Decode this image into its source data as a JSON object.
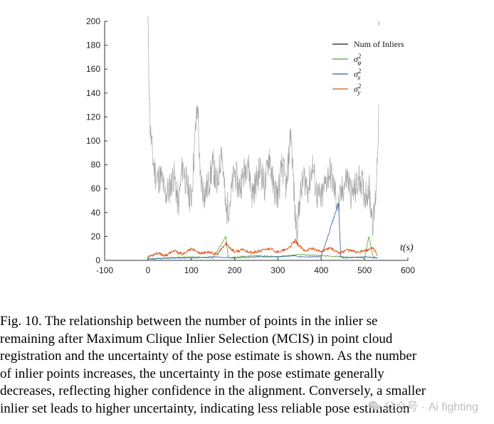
{
  "chart_data": {
    "type": "line",
    "xlabel": "t(s)",
    "ylabel": "",
    "xlim": [
      -100,
      600
    ],
    "ylim": [
      0,
      200
    ],
    "x_ticks": [
      "-100",
      "0",
      "100",
      "200",
      "300",
      "400",
      "500",
      "600"
    ],
    "y_ticks": [
      "0",
      "20",
      "40",
      "60",
      "80",
      "100",
      "120",
      "140",
      "160",
      "180",
      "200"
    ],
    "legend_position": "top-right",
    "series": [
      {
        "name": "Num of Inliers",
        "color": "#a6a6a6",
        "legend_color": "#1a1a1a",
        "x": [
          0,
          5,
          12,
          20,
          30,
          40,
          50,
          60,
          70,
          80,
          90,
          100,
          110,
          115,
          120,
          130,
          140,
          150,
          160,
          170,
          180,
          190,
          200,
          210,
          220,
          230,
          240,
          250,
          260,
          270,
          280,
          290,
          300,
          310,
          320,
          330,
          340,
          345,
          350,
          360,
          370,
          380,
          390,
          400,
          410,
          420,
          430,
          440,
          450,
          460,
          470,
          480,
          490,
          500,
          510,
          520,
          525,
          530,
          533
        ],
        "y": [
          200,
          110,
          82,
          68,
          70,
          55,
          60,
          72,
          45,
          80,
          62,
          50,
          110,
          130,
          70,
          55,
          64,
          80,
          60,
          95,
          40,
          50,
          75,
          60,
          70,
          85,
          55,
          65,
          78,
          60,
          90,
          60,
          55,
          80,
          60,
          110,
          35,
          25,
          50,
          70,
          60,
          80,
          55,
          50,
          65,
          75,
          60,
          45,
          60,
          70,
          55,
          60,
          70,
          55,
          60,
          30,
          50,
          90,
          130
        ]
      },
      {
        "name": "σ_φ^2",
        "color": "#55a630",
        "x": [
          0,
          50,
          100,
          150,
          180,
          185,
          190,
          200,
          250,
          300,
          350,
          400,
          450,
          500,
          510,
          520,
          530
        ],
        "y": [
          1,
          2,
          3,
          2,
          20,
          3,
          2,
          3,
          4,
          3,
          5,
          4,
          3,
          2,
          20,
          3,
          2
        ]
      },
      {
        "name": "σ_x^2",
        "color": "#2f5ea8",
        "x": [
          0,
          50,
          100,
          150,
          200,
          250,
          300,
          340,
          350,
          400,
          440,
          445,
          450,
          500,
          530
        ],
        "y": [
          1,
          2,
          2,
          3,
          2,
          3,
          3,
          4,
          3,
          3,
          48,
          3,
          2,
          3,
          2
        ]
      },
      {
        "name": "σ_y^2",
        "color": "#d95319",
        "x": [
          0,
          20,
          40,
          60,
          80,
          100,
          120,
          140,
          160,
          180,
          200,
          220,
          240,
          260,
          280,
          300,
          320,
          340,
          360,
          380,
          400,
          420,
          440,
          460,
          480,
          500,
          520,
          530
        ],
        "y": [
          3,
          6,
          4,
          8,
          5,
          10,
          6,
          7,
          5,
          14,
          7,
          9,
          6,
          8,
          10,
          7,
          9,
          16,
          8,
          10,
          7,
          11,
          6,
          9,
          7,
          8,
          10,
          4
        ]
      }
    ]
  },
  "caption": {
    "lines": [
      "Fig. 10.  The relationship between the number of points in the inlier se",
      "remaining after Maximum Clique Inlier Selection (MCIS) in point cloud",
      "registration and the uncertainty of the pose estimate is shown. As the number",
      "of inlier points increases, the uncertainty in the pose estimate generally",
      "decreases, reflecting higher confidence in the alignment. Conversely, a smaller",
      "inlier set leads to higher uncertainty, indicating less reliable pose estimation"
    ]
  },
  "watermark": {
    "text": "公众号 · Ai fighting",
    "icon": "wechat-icon"
  }
}
